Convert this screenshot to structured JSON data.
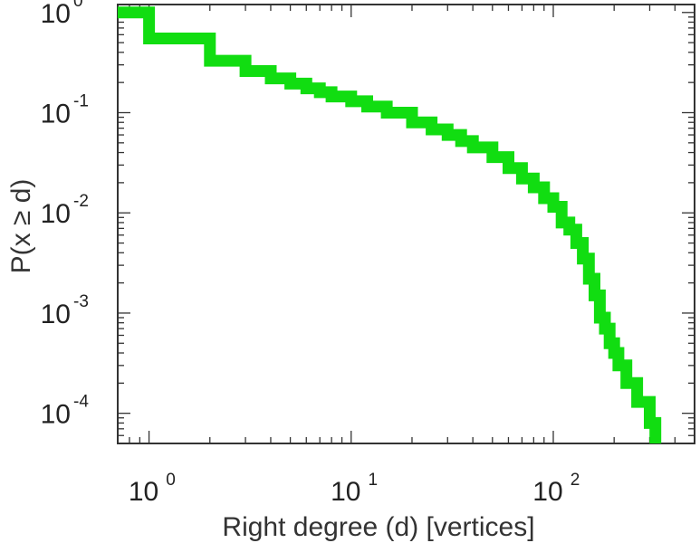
{
  "chart_data": {
    "type": "line",
    "step": true,
    "xscale": "log",
    "yscale": "log",
    "xlabel": "Right degree (d) [vertices]",
    "ylabel": "P(x ≥ d)",
    "xlim": [
      0.7,
      500
    ],
    "ylim": [
      5e-05,
      1.2
    ],
    "grid": false,
    "legend": "none",
    "x_ticks": [
      {
        "value": 1,
        "base": "10",
        "exp": "0"
      },
      {
        "value": 10,
        "base": "10",
        "exp": "1"
      },
      {
        "value": 100,
        "base": "10",
        "exp": "2"
      }
    ],
    "y_ticks": [
      {
        "value": 1,
        "base": "10",
        "exp": "0"
      },
      {
        "value": 0.1,
        "base": "10",
        "exp": "-1"
      },
      {
        "value": 0.01,
        "base": "10",
        "exp": "-2"
      },
      {
        "value": 0.001,
        "base": "10",
        "exp": "-3"
      },
      {
        "value": 0.0001,
        "base": "10",
        "exp": "-4"
      }
    ],
    "series": [
      {
        "color": "#11dd11",
        "x": [
          0.7,
          1,
          2,
          3,
          4,
          5,
          6,
          7,
          8,
          10,
          12,
          15,
          20,
          25,
          30,
          35,
          40,
          50,
          60,
          70,
          80,
          90,
          100,
          110,
          120,
          130,
          140,
          150,
          160,
          170,
          180,
          190,
          200,
          210,
          230,
          260,
          300,
          320
        ],
        "y": [
          1.0,
          0.55,
          0.33,
          0.26,
          0.22,
          0.195,
          0.175,
          0.16,
          0.145,
          0.13,
          0.115,
          0.1,
          0.08,
          0.068,
          0.06,
          0.052,
          0.045,
          0.036,
          0.028,
          0.022,
          0.018,
          0.014,
          0.0115,
          0.008,
          0.0068,
          0.005,
          0.0035,
          0.0022,
          0.0015,
          0.0009,
          0.0007,
          0.0005,
          0.0004,
          0.0003,
          0.0002,
          0.00013,
          8e-05,
          5e-05
        ]
      }
    ]
  }
}
